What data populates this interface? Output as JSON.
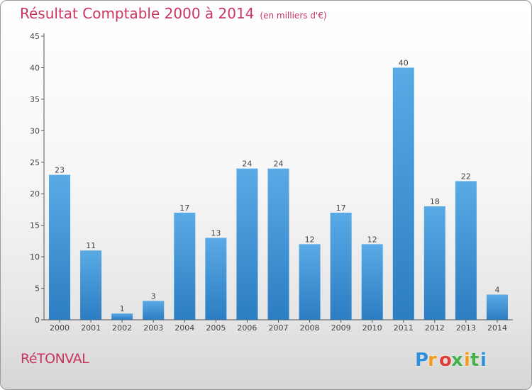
{
  "title": "Résultat Comptable 2000 à 2014",
  "subtitle": "(en milliers d'€)",
  "commune": "RéTONVAL",
  "logo": {
    "letters": [
      "P",
      "r",
      "o",
      "x",
      "i",
      "t",
      "i"
    ],
    "colors": [
      "#2f8fd8",
      "#f29c1f",
      "#e23b3b",
      "#45b04a",
      "#f29c1f",
      "#45b04a",
      "#2f8fd8"
    ]
  },
  "chart_data": {
    "type": "bar",
    "title": "Résultat Comptable 2000 à 2014",
    "subtitle": "(en milliers d'€)",
    "xlabel": "",
    "ylabel": "",
    "categories": [
      "2000",
      "2001",
      "2002",
      "2003",
      "2004",
      "2005",
      "2006",
      "2007",
      "2008",
      "2009",
      "2010",
      "2011",
      "2012",
      "2013",
      "2014"
    ],
    "values": [
      23,
      11,
      1,
      3,
      17,
      13,
      24,
      24,
      12,
      17,
      12,
      40,
      18,
      22,
      4
    ],
    "ylim": [
      0,
      45
    ],
    "yticks": [
      0,
      5,
      10,
      15,
      20,
      25,
      30,
      35,
      40,
      45
    ],
    "grid": false,
    "bar_color_top": "#5aaae6",
    "bar_color_bottom": "#2c7dc2"
  }
}
